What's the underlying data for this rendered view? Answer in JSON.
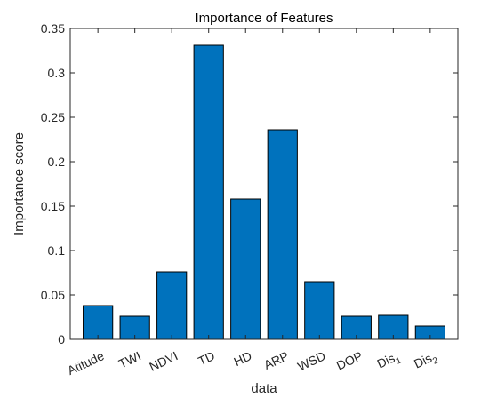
{
  "chart_data": {
    "type": "bar",
    "title": "Importance of Features",
    "xlabel": "data",
    "ylabel": "Importance score",
    "categories": [
      {
        "base": "Atitude",
        "sub": ""
      },
      {
        "base": "TWI",
        "sub": ""
      },
      {
        "base": "NDVI",
        "sub": ""
      },
      {
        "base": "TD",
        "sub": ""
      },
      {
        "base": "HD",
        "sub": ""
      },
      {
        "base": "ARP",
        "sub": ""
      },
      {
        "base": "WSD",
        "sub": ""
      },
      {
        "base": "DOP",
        "sub": ""
      },
      {
        "base": "Dis",
        "sub": "1"
      },
      {
        "base": "Dis",
        "sub": "2"
      }
    ],
    "values": [
      0.038,
      0.026,
      0.076,
      0.331,
      0.158,
      0.236,
      0.065,
      0.026,
      0.027,
      0.015
    ],
    "ylim": [
      0,
      0.35
    ],
    "yticks": [
      0,
      0.05,
      0.1,
      0.15,
      0.2,
      0.25,
      0.3,
      0.35
    ],
    "ytick_labels": [
      "0",
      "0.05",
      "0.1",
      "0.15",
      "0.2",
      "0.25",
      "0.3",
      "0.35"
    ],
    "bar_color": "#0072BD",
    "grid": false,
    "box": true
  }
}
